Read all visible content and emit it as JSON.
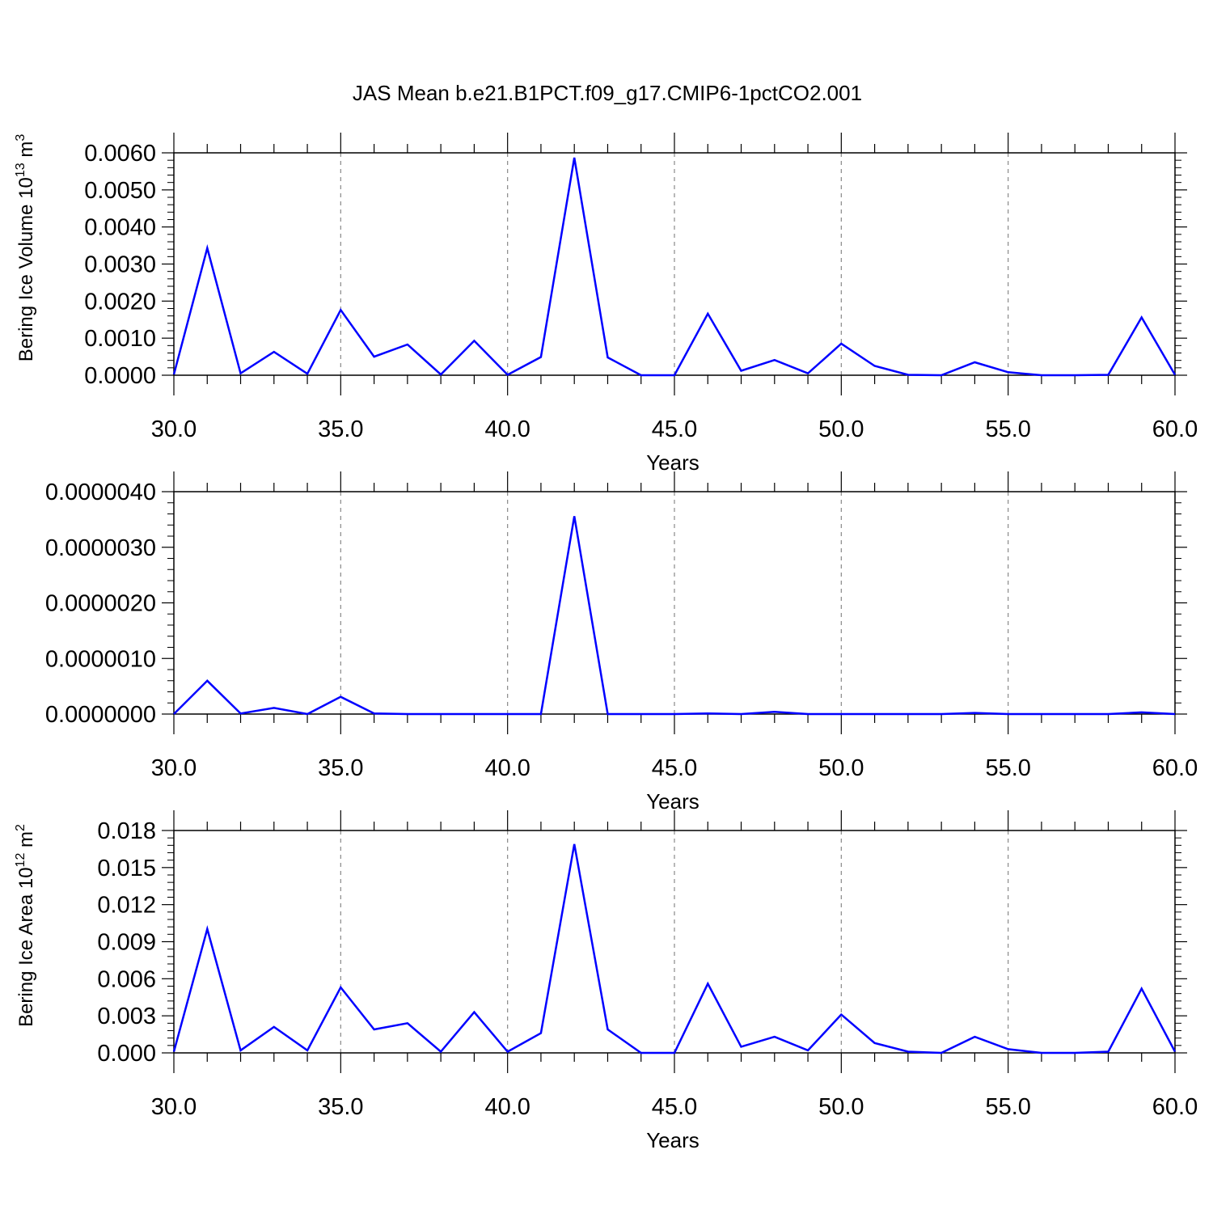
{
  "title": "JAS Mean b.e21.B1PCT.f09_g17.CMIP6-1pctCO2.001",
  "colors": {
    "line": "#0000ff",
    "axis": "#000000",
    "grid": "#888888"
  },
  "chart_data": [
    {
      "type": "line",
      "title": "JAS Mean b.e21.B1PCT.f09_g17.CMIP6-1pctCO2.001",
      "ylabel": "Bering Ice Volume 10",
      "ylabel_sup": "13",
      "ylabel_unit": " m",
      "ylabel_unit_sup": "3",
      "xlabel": "Years",
      "xlim": [
        30,
        60
      ],
      "ylim": [
        0,
        0.006
      ],
      "grid": "vertical dashed",
      "xticks": [
        30,
        35,
        40,
        45,
        50,
        55,
        60
      ],
      "xtick_labels": [
        "30.0",
        "35.0",
        "40.0",
        "45.0",
        "50.0",
        "55.0",
        "60.0"
      ],
      "yticks": [
        0,
        0.001,
        0.002,
        0.003,
        0.004,
        0.005,
        0.006
      ],
      "ytick_labels": [
        "0.0000",
        "0.0010",
        "0.0020",
        "0.0030",
        "0.0040",
        "0.0050",
        "0.0060"
      ],
      "x": [
        30,
        31,
        32,
        33,
        34,
        35,
        36,
        37,
        38,
        39,
        40,
        41,
        42,
        43,
        44,
        45,
        46,
        47,
        48,
        49,
        50,
        51,
        52,
        53,
        54,
        55,
        56,
        57,
        58,
        59,
        60
      ],
      "y": [
        2e-05,
        0.00343,
        5e-05,
        0.00063,
        4e-05,
        0.00176,
        0.0005,
        0.00083,
        2e-05,
        0.00093,
        1e-05,
        0.00049,
        0.00587,
        0.00048,
        0.0,
        0.0,
        0.00166,
        0.00012,
        0.00041,
        5e-05,
        0.00085,
        0.00025,
        1e-05,
        0.0,
        0.00035,
        8e-05,
        0.0,
        0.0,
        1e-05,
        0.00156,
        1e-05
      ]
    },
    {
      "type": "line",
      "ylabel": "",
      "xlabel": "Years",
      "xlim": [
        30,
        60
      ],
      "ylim": [
        0,
        4e-06
      ],
      "grid": "vertical dashed",
      "xticks": [
        30,
        35,
        40,
        45,
        50,
        55,
        60
      ],
      "xtick_labels": [
        "30.0",
        "35.0",
        "40.0",
        "45.0",
        "50.0",
        "55.0",
        "60.0"
      ],
      "yticks": [
        0,
        1e-06,
        2e-06,
        3e-06,
        4e-06
      ],
      "ytick_labels": [
        "0.0000000",
        "0.0000010",
        "0.0000020",
        "0.0000030",
        "0.0000040"
      ],
      "x": [
        30,
        31,
        32,
        33,
        34,
        35,
        36,
        37,
        38,
        39,
        40,
        41,
        42,
        43,
        44,
        45,
        46,
        47,
        48,
        49,
        50,
        51,
        52,
        53,
        54,
        55,
        56,
        57,
        58,
        59,
        60
      ],
      "y": [
        0.0,
        6e-07,
        1e-08,
        1.1e-07,
        0.0,
        3.1e-07,
        1e-08,
        0.0,
        0.0,
        0.0,
        0.0,
        0.0,
        3.56e-06,
        0.0,
        0.0,
        0.0,
        1e-08,
        0.0,
        4e-08,
        0.0,
        0.0,
        0.0,
        0.0,
        0.0,
        2e-08,
        0.0,
        0.0,
        0.0,
        0.0,
        3e-08,
        0.0
      ]
    },
    {
      "type": "line",
      "ylabel": "Bering Ice Area 10",
      "ylabel_sup": "12",
      "ylabel_unit": " m",
      "ylabel_unit_sup": "2",
      "xlabel": "Years",
      "xlim": [
        30,
        60
      ],
      "ylim": [
        0,
        0.018
      ],
      "grid": "vertical dashed",
      "xticks": [
        30,
        35,
        40,
        45,
        50,
        55,
        60
      ],
      "xtick_labels": [
        "30.0",
        "35.0",
        "40.0",
        "45.0",
        "50.0",
        "55.0",
        "60.0"
      ],
      "yticks": [
        0,
        0.003,
        0.006,
        0.009,
        0.012,
        0.015,
        0.018
      ],
      "ytick_labels": [
        "0.000",
        "0.003",
        "0.006",
        "0.009",
        "0.012",
        "0.015",
        "0.018"
      ],
      "x": [
        30,
        31,
        32,
        33,
        34,
        35,
        36,
        37,
        38,
        39,
        40,
        41,
        42,
        43,
        44,
        45,
        46,
        47,
        48,
        49,
        50,
        51,
        52,
        53,
        54,
        55,
        56,
        57,
        58,
        59,
        60
      ],
      "y": [
        0.0001,
        0.01003,
        0.0002,
        0.0021,
        0.0002,
        0.0053,
        0.0019,
        0.0024,
        0.0001,
        0.0033,
        0.0001,
        0.0016,
        0.0169,
        0.0019,
        0.0,
        0.0,
        0.0056,
        0.0005,
        0.0013,
        0.0002,
        0.0031,
        0.0008,
        0.0001,
        0.0,
        0.0013,
        0.0003,
        0.0,
        0.0,
        0.0001,
        0.0052,
        0.0001
      ]
    }
  ]
}
